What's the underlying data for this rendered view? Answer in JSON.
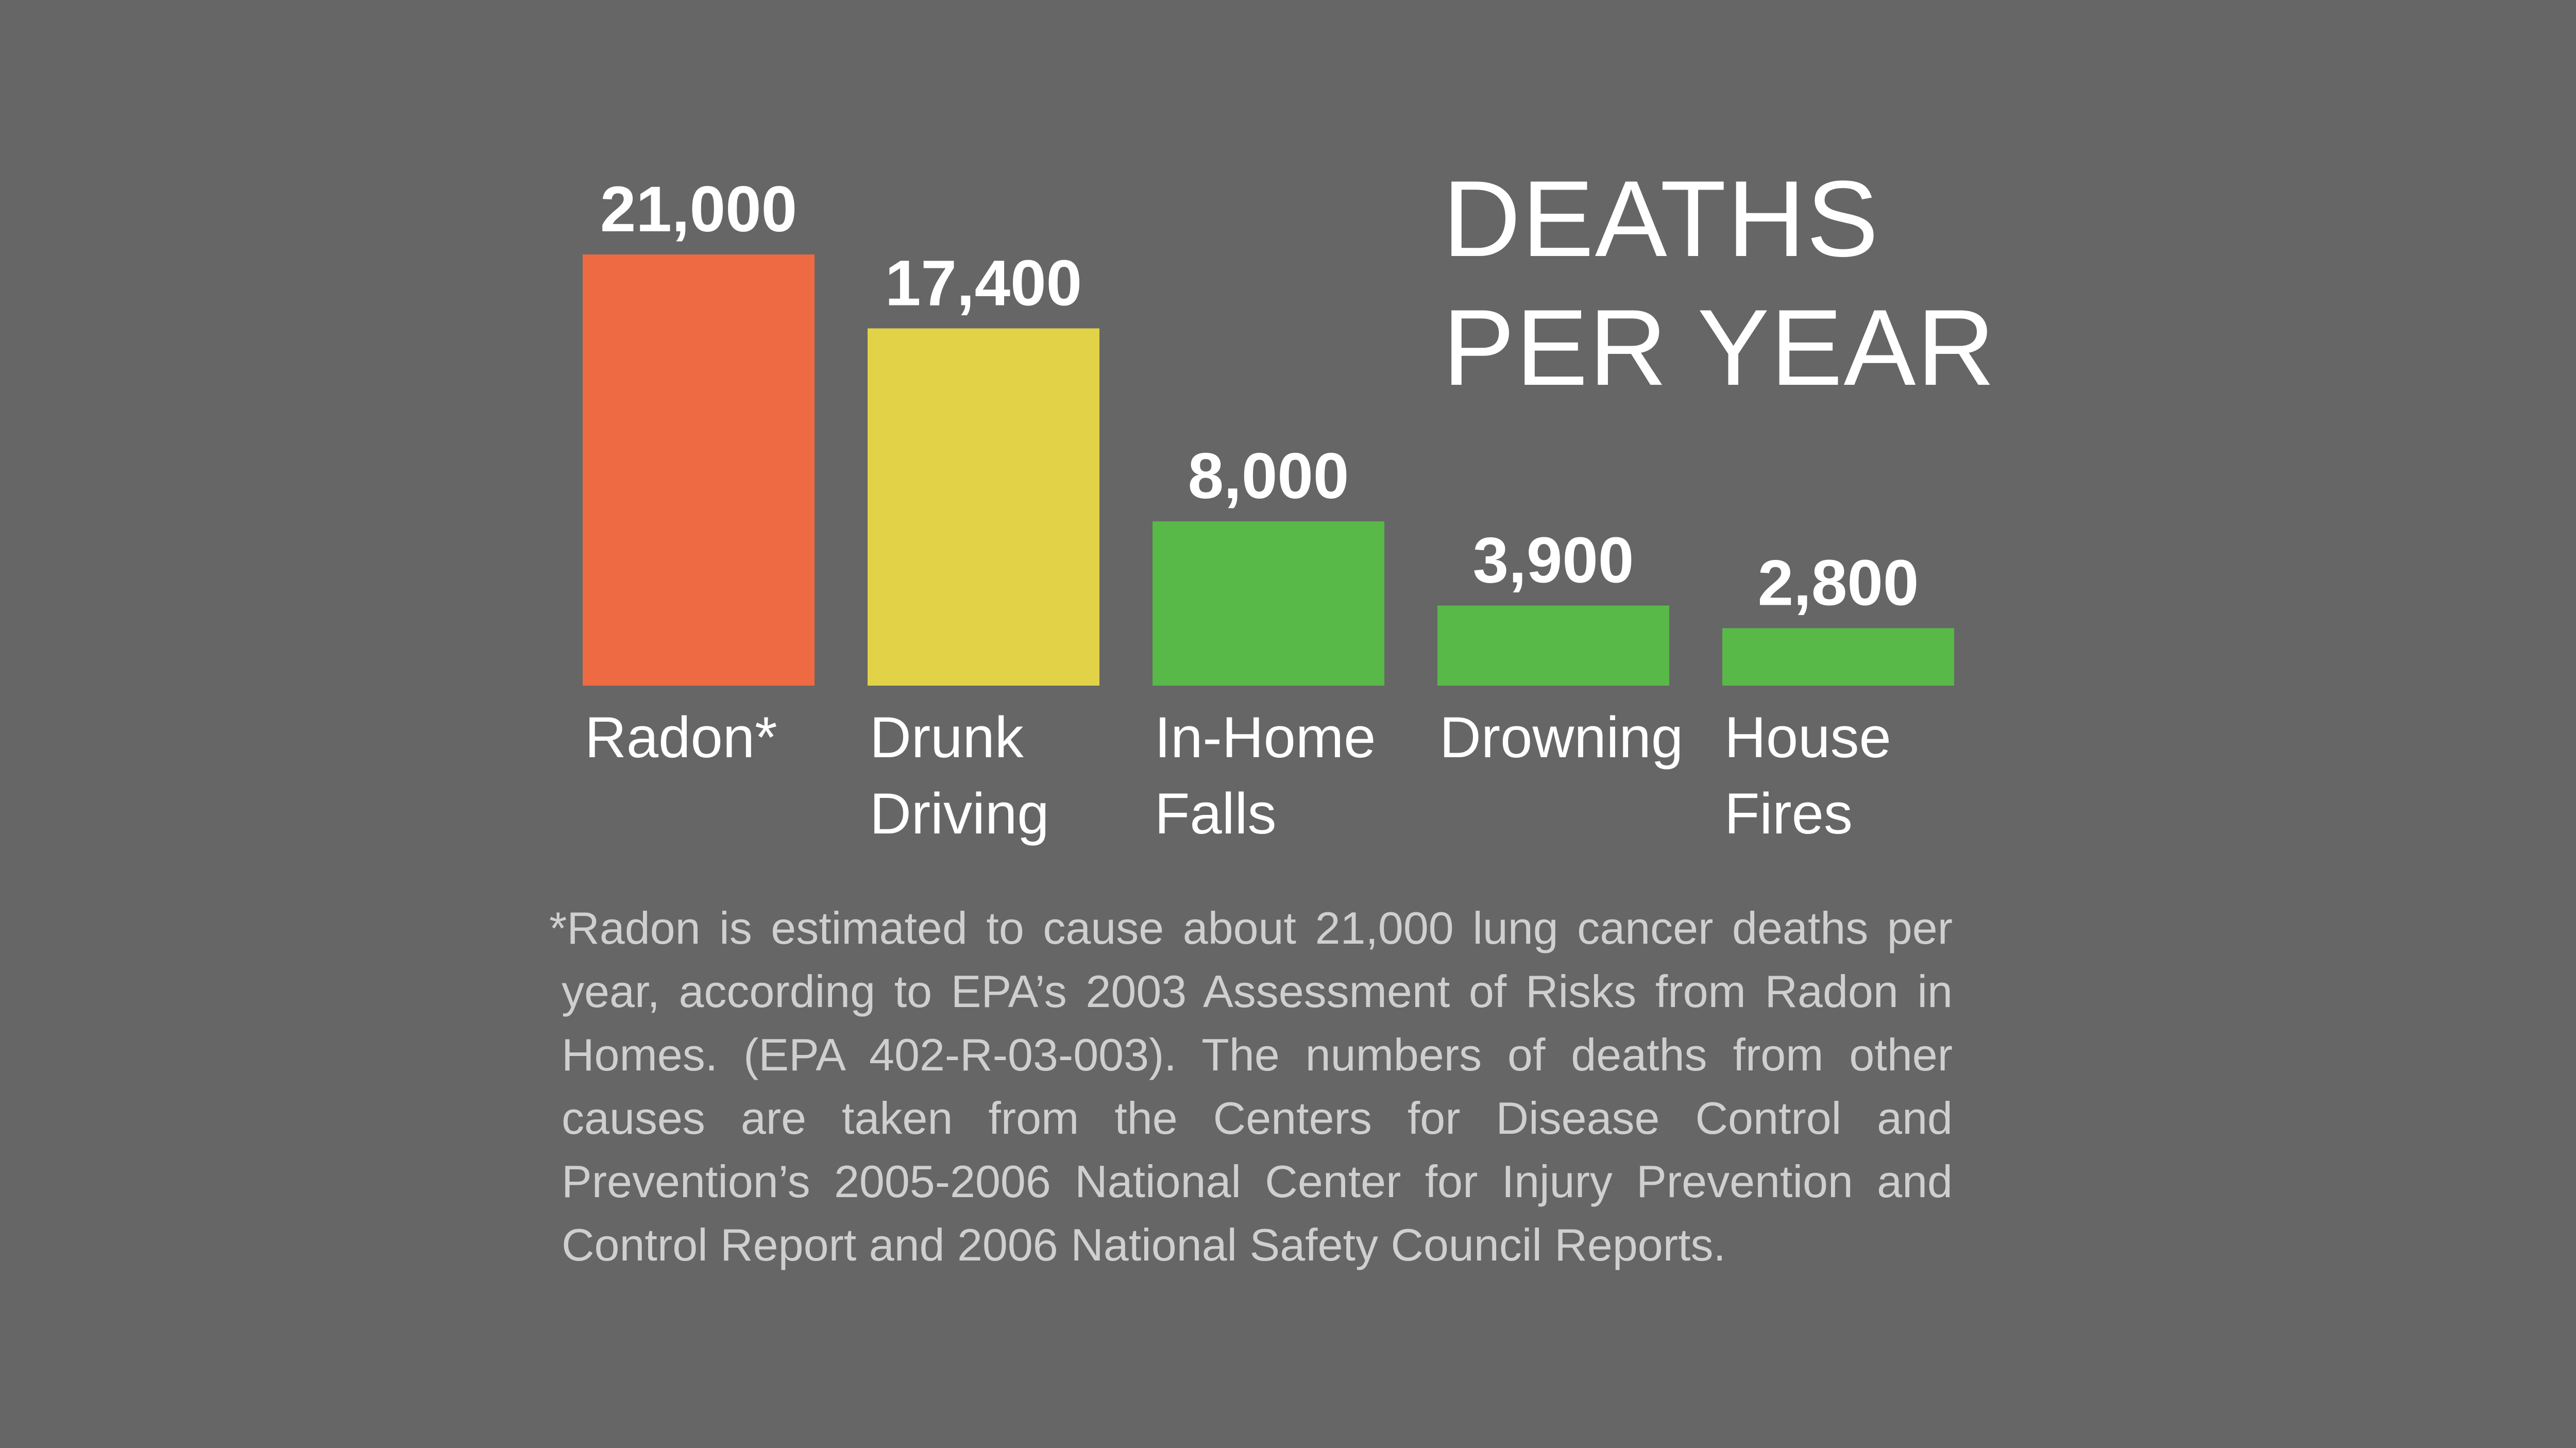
{
  "title_lines": [
    "DEATHS",
    "PER YEAR"
  ],
  "footnote": "*Radon is estimated to cause about 21,000 lung cancer deaths per year, according to EPA’s 2003 Assessment of Risks from Radon in Homes. (EPA 402-R-03-003). The numbers of deaths from other causes are taken from the Centers for Disease Control and Prevention’s 2005-2006 National Center for Injury Prevention and Control Report and 2006 National Safety Council Reports.",
  "chart_data": {
    "type": "bar",
    "title": "DEATHS PER YEAR",
    "categories": [
      "Radon*",
      "Drunk Driving",
      "In-Home Falls",
      "Drowning",
      "House Fires"
    ],
    "category_lines": [
      [
        "Radon*"
      ],
      [
        "Drunk",
        "Driving"
      ],
      [
        "In-Home",
        "Falls"
      ],
      [
        "Drowning"
      ],
      [
        "House",
        "Fires"
      ]
    ],
    "values": [
      21000,
      17400,
      8000,
      3900,
      2800
    ],
    "value_labels": [
      "21,000",
      "17,400",
      "8,000",
      "3,900",
      "2,800"
    ],
    "colors": [
      "#EE6A42",
      "#E2D247",
      "#58B848",
      "#58B848",
      "#58B848"
    ],
    "ylim": [
      0,
      21000
    ],
    "xlabel": "",
    "ylabel": "",
    "grid": false,
    "legend": "none"
  }
}
